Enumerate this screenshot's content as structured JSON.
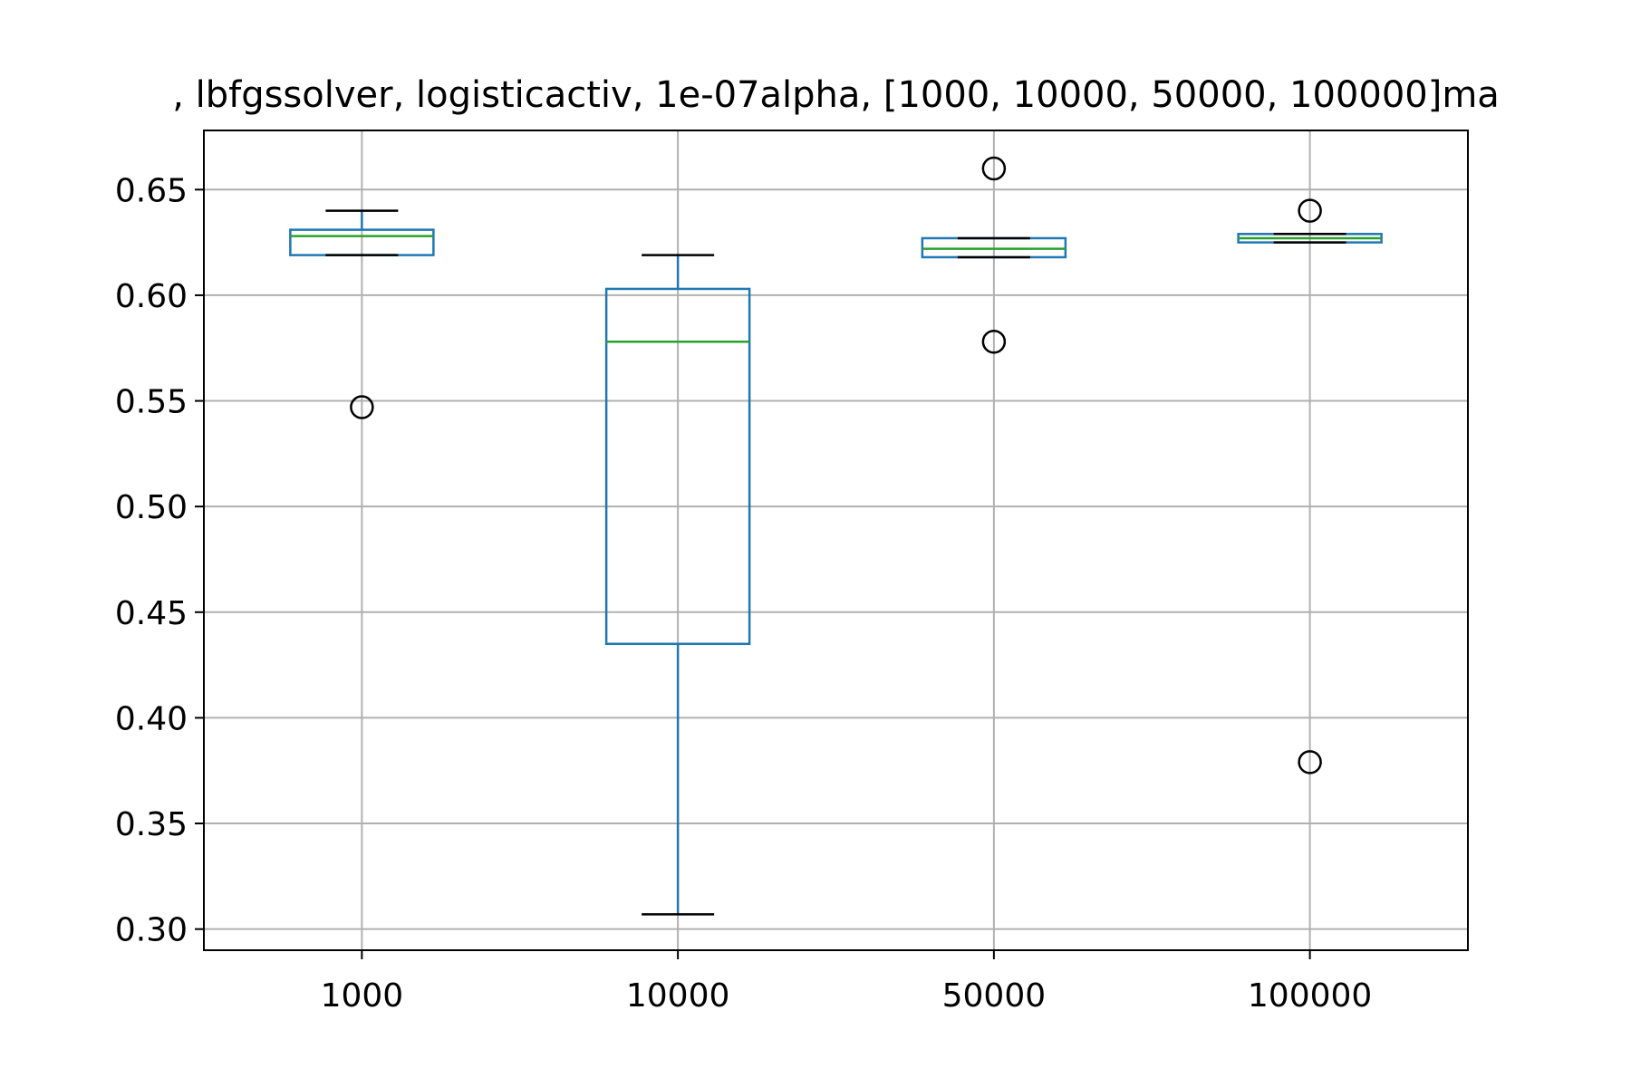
{
  "chart_data": {
    "type": "box",
    "title": ", lbfgssolver, logisticactiv, 1e-07alpha, [1000, 10000, 50000, 100000]ma",
    "xlabel": "",
    "ylabel": "",
    "categories": [
      "1000",
      "10000",
      "50000",
      "100000"
    ],
    "ylim": [
      0.29,
      0.678
    ],
    "yticks": [
      0.3,
      0.35,
      0.4,
      0.45,
      0.5,
      0.55,
      0.6,
      0.65
    ],
    "ytick_labels": [
      "0.30",
      "0.35",
      "0.40",
      "0.45",
      "0.50",
      "0.55",
      "0.60",
      "0.65"
    ],
    "grid": true,
    "boxes": [
      {
        "category": "1000",
        "whisker_low": 0.619,
        "q1": 0.619,
        "median": 0.628,
        "q3": 0.631,
        "whisker_high": 0.64,
        "outliers": [
          0.547
        ]
      },
      {
        "category": "10000",
        "whisker_low": 0.307,
        "q1": 0.435,
        "median": 0.578,
        "q3": 0.603,
        "whisker_high": 0.619,
        "outliers": []
      },
      {
        "category": "50000",
        "whisker_low": 0.618,
        "q1": 0.618,
        "median": 0.622,
        "q3": 0.627,
        "whisker_high": 0.627,
        "outliers": [
          0.66,
          0.578
        ]
      },
      {
        "category": "100000",
        "whisker_low": 0.625,
        "q1": 0.625,
        "median": 0.627,
        "q3": 0.629,
        "whisker_high": 0.629,
        "outliers": [
          0.64,
          0.379
        ]
      }
    ],
    "colors": {
      "box": "#1f77b4",
      "median": "#2ca02c",
      "whisker_cap": "#000000",
      "outlier": "#000000",
      "grid": "#b0b0b0",
      "axes": "#000000"
    }
  }
}
